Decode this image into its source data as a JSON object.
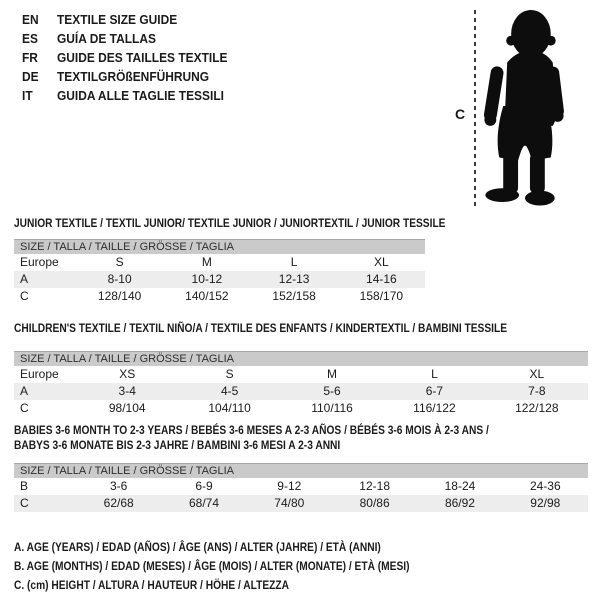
{
  "colors": {
    "band_bg": "#cacaca",
    "stripe_bg": "#ededed",
    "text": "#1b1b1b",
    "silhouette": "#0d0d0d"
  },
  "languages": [
    {
      "code": "EN",
      "label": "TEXTILE SIZE GUIDE"
    },
    {
      "code": "ES",
      "label": "GUÍA DE TALLAS"
    },
    {
      "code": "FR",
      "label": "GUIDE DES TAILLES TEXTILE"
    },
    {
      "code": "DE",
      "label": "TEXTILGRÖßENFÜHRUNG"
    },
    {
      "code": "IT",
      "label": "GUIDA ALLE TAGLIE TESSILI"
    }
  ],
  "figure": {
    "measure_label": "C",
    "image": "baby-silhouette"
  },
  "tables": [
    {
      "title": "JUNIOR TEXTILE / TEXTIL JUNIOR/ TEXTILE JUNIOR / JUNIORTEXTIL / JUNIOR TESSILE",
      "size_header": "SIZE / TALLA / TAILLE / GRÖSSE / TAGLIA",
      "rows": [
        [
          "Europe",
          "S",
          "M",
          "L",
          "XL"
        ],
        [
          "A",
          "8-10",
          "10-12",
          "12-13",
          "14-16"
        ],
        [
          "C",
          "128/140",
          "140/152",
          "152/158",
          "158/170"
        ]
      ]
    },
    {
      "title": "CHILDREN'S TEXTILE / TEXTIL NIÑO/A / TEXTILE DES ENFANTS / KINDERTEXTIL / BAMBINI TESSILE",
      "size_header": "SIZE / TALLA / TAILLE / GRÖSSE / TAGLIA",
      "rows": [
        [
          "Europe",
          "XS",
          "S",
          "M",
          "L",
          "XL"
        ],
        [
          "A",
          "3-4",
          "4-5",
          "5-6",
          "6-7",
          "7-8"
        ],
        [
          "C",
          "98/104",
          "104/110",
          "110/116",
          "116/122",
          "122/128"
        ]
      ]
    },
    {
      "title": "BABIES 3-6 MONTH TO 2-3 YEARS / BEBÉS 3-6 MESES A 2-3 AÑOS / BÉBÉS 3-6 MOIS À 2-3 ANS /",
      "title_line2": "BABYS 3-6 MONATE BIS 2-3 JAHRE / BAMBINI 3-6 MESI A 2-3 ANNI",
      "size_header": "SIZE / TALLA / TAILLE / GRÖSSE / TAGLIA",
      "rows": [
        [
          "B",
          "3-6",
          "6-9",
          "9-12",
          "12-18",
          "18-24",
          "24-36"
        ],
        [
          "C",
          "62/68",
          "68/74",
          "74/80",
          "80/86",
          "86/92",
          "92/98"
        ]
      ]
    }
  ],
  "footnotes": [
    "A. AGE (YEARS) / EDAD (AÑOS) / ÂGE (ANS) / ALTER (JAHRE) / ETÀ (ANNI)",
    "B. AGE (MONTHS) / EDAD (MESES) / ÂGE (MOIS) / ALTER (MONATE) / ETÀ (MESI)",
    "C. (cm) HEIGHT / ALTURA / HAUTEUR / HÖHE / ALTEZZA"
  ]
}
